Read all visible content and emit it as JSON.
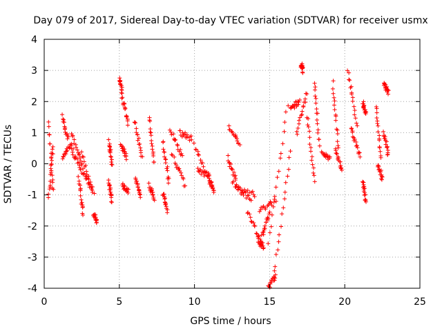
{
  "chart_data": {
    "type": "scatter",
    "title": "Day 079 of 2017, Sidereal Day-to-day VTEC variation (SDTVAR) for receiver usmx",
    "xlabel": "GPS time / hours",
    "ylabel": "SDTVAR / TECUs",
    "xlim": [
      0,
      25
    ],
    "ylim": [
      -4,
      4
    ],
    "xticks": [
      0,
      5,
      10,
      15,
      20,
      25
    ],
    "yticks": [
      -4,
      -3,
      -2,
      -1,
      0,
      1,
      2,
      3,
      4
    ],
    "xtick_labels": [
      "0",
      "5",
      "10",
      "15",
      "20",
      "25"
    ],
    "ytick_labels": [
      "-4",
      "-3",
      "-2",
      "-1",
      "0",
      "1",
      "2",
      "3",
      "4"
    ],
    "grid": true,
    "marker": "plus",
    "color": "#ff0000",
    "segments": [
      {
        "x0": 0.3,
        "x1": 0.6,
        "y0": 1.3,
        "y1": -0.9
      },
      {
        "x0": 0.3,
        "x1": 0.6,
        "y0": -1.1,
        "y1": 0.6
      },
      {
        "x0": 1.2,
        "x1": 1.6,
        "y0": 1.5,
        "y1": 0.8
      },
      {
        "x0": 1.2,
        "x1": 1.8,
        "y0": 0.2,
        "y1": 0.7
      },
      {
        "x0": 1.8,
        "x1": 2.6,
        "y0": 1.0,
        "y1": -0.1
      },
      {
        "x0": 1.8,
        "x1": 2.5,
        "y0": 0.5,
        "y1": -0.3
      },
      {
        "x0": 2.3,
        "x1": 2.6,
        "y0": -0.5,
        "y1": -1.6
      },
      {
        "x0": 2.5,
        "x1": 3.3,
        "y0": 0.3,
        "y1": -1.0
      },
      {
        "x0": 2.6,
        "x1": 3.2,
        "y0": -0.3,
        "y1": -0.8
      },
      {
        "x0": 3.3,
        "x1": 3.5,
        "y0": -1.6,
        "y1": -1.9
      },
      {
        "x0": 4.3,
        "x1": 4.5,
        "y0": 0.7,
        "y1": 0.0
      },
      {
        "x0": 4.3,
        "x1": 4.5,
        "y0": -0.6,
        "y1": -1.2
      },
      {
        "x0": 5.0,
        "x1": 5.2,
        "y0": 2.7,
        "y1": 2.3
      },
      {
        "x0": 5.2,
        "x1": 5.6,
        "y0": 2.1,
        "y1": 1.3
      },
      {
        "x0": 5.1,
        "x1": 5.5,
        "y0": 0.6,
        "y1": 0.2
      },
      {
        "x0": 5.2,
        "x1": 5.6,
        "y0": -0.7,
        "y1": -0.9
      },
      {
        "x0": 6.0,
        "x1": 6.5,
        "y0": 1.4,
        "y1": 0.2
      },
      {
        "x0": 6.1,
        "x1": 6.4,
        "y0": -0.5,
        "y1": -1.0
      },
      {
        "x0": 7.0,
        "x1": 7.3,
        "y0": 1.5,
        "y1": 0.0
      },
      {
        "x0": 7.0,
        "x1": 7.3,
        "y0": -0.7,
        "y1": -1.1
      },
      {
        "x0": 7.9,
        "x1": 8.3,
        "y0": 0.7,
        "y1": -0.6
      },
      {
        "x0": 7.9,
        "x1": 8.2,
        "y0": -0.9,
        "y1": -1.5
      },
      {
        "x0": 8.4,
        "x1": 9.2,
        "y0": 1.1,
        "y1": 0.2
      },
      {
        "x0": 8.5,
        "x1": 9.4,
        "y0": 0.3,
        "y1": -0.7
      },
      {
        "x0": 9.0,
        "x1": 9.8,
        "y0": 1.0,
        "y1": 0.8
      },
      {
        "x0": 10.0,
        "x1": 11.0,
        "y0": 0.6,
        "y1": -0.6
      },
      {
        "x0": 10.2,
        "x1": 11.0,
        "y0": -0.2,
        "y1": -0.4
      },
      {
        "x0": 11.0,
        "x1": 11.3,
        "y0": -0.5,
        "y1": -0.9
      },
      {
        "x0": 12.3,
        "x1": 13.0,
        "y0": 1.2,
        "y1": 0.6
      },
      {
        "x0": 12.2,
        "x1": 12.8,
        "y0": 0.2,
        "y1": -0.6
      },
      {
        "x0": 12.5,
        "x1": 13.8,
        "y0": -0.6,
        "y1": -1.2
      },
      {
        "x0": 12.8,
        "x1": 14.0,
        "y0": -0.8,
        "y1": -1.0
      },
      {
        "x0": 13.5,
        "x1": 14.5,
        "y0": -1.5,
        "y1": -2.6
      },
      {
        "x0": 14.2,
        "x1": 14.6,
        "y0": -2.4,
        "y1": -2.7
      },
      {
        "x0": 14.3,
        "x1": 15.4,
        "y0": -1.5,
        "y1": -1.2
      },
      {
        "x0": 14.5,
        "x1": 15.0,
        "y0": -2.3,
        "y1": -1.6
      },
      {
        "x0": 14.9,
        "x1": 16.2,
        "y0": -2.6,
        "y1": 1.9
      },
      {
        "x0": 14.9,
        "x1": 15.4,
        "y0": -4.0,
        "y1": -3.6
      },
      {
        "x0": 15.3,
        "x1": 16.4,
        "y0": -3.5,
        "y1": 0.4
      },
      {
        "x0": 16.4,
        "x1": 17.0,
        "y0": 1.8,
        "y1": 2.0
      },
      {
        "x0": 16.8,
        "x1": 17.5,
        "y0": 1.0,
        "y1": 2.3
      },
      {
        "x0": 17.1,
        "x1": 17.2,
        "y0": 3.2,
        "y1": 3.0
      },
      {
        "x0": 17.5,
        "x1": 18.0,
        "y0": 1.5,
        "y1": -0.5
      },
      {
        "x0": 18.0,
        "x1": 18.3,
        "y0": 2.6,
        "y1": 0.6
      },
      {
        "x0": 18.5,
        "x1": 19.0,
        "y0": 0.3,
        "y1": 0.2
      },
      {
        "x0": 19.2,
        "x1": 19.6,
        "y0": 2.6,
        "y1": 0.5
      },
      {
        "x0": 19.4,
        "x1": 19.8,
        "y0": 0.4,
        "y1": -0.2
      },
      {
        "x0": 20.2,
        "x1": 20.8,
        "y0": 3.0,
        "y1": 1.2
      },
      {
        "x0": 20.4,
        "x1": 21.0,
        "y0": 1.2,
        "y1": 0.2
      },
      {
        "x0": 21.2,
        "x1": 21.4,
        "y0": 2.0,
        "y1": 1.6
      },
      {
        "x0": 21.2,
        "x1": 21.4,
        "y0": -0.5,
        "y1": -1.2
      },
      {
        "x0": 22.1,
        "x1": 22.4,
        "y0": 1.8,
        "y1": 0.2
      },
      {
        "x0": 22.2,
        "x1": 22.5,
        "y0": 0.0,
        "y1": -0.5
      },
      {
        "x0": 22.6,
        "x1": 22.9,
        "y0": 2.6,
        "y1": 2.3
      },
      {
        "x0": 22.6,
        "x1": 22.9,
        "y0": 1.0,
        "y1": 0.3
      }
    ],
    "points_per_segment": 16
  }
}
